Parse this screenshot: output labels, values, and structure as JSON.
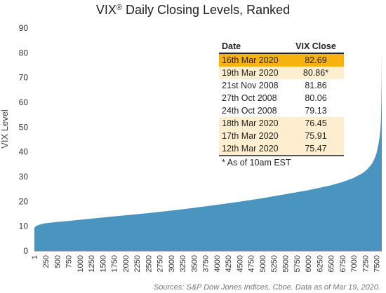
{
  "title_main": "VIX",
  "title_mark": "®",
  "title_rest": " Daily Closing Levels, Ranked",
  "source": "Sources: S&P Dow Jones Indices, Cboe.  Data as of Mar 19, 2020.",
  "colors": {
    "area": "#4a95c0",
    "highlight": "#f9b20f",
    "light": "#fdeed0"
  },
  "table": {
    "header": {
      "date": "Date",
      "value": "VIX Close"
    },
    "rows": [
      {
        "date": "16th Mar 2020",
        "value": "82.69",
        "style": "highlight"
      },
      {
        "date": "19th Mar 2020",
        "value": "80.86*",
        "style": "light"
      },
      {
        "date": "21st Nov 2008",
        "value": "81.86",
        "style": "plain"
      },
      {
        "date": "27th Oct 2008",
        "value": "80.06",
        "style": "plain"
      },
      {
        "date": "24th Oct 2008",
        "value": "79.13",
        "style": "plain"
      },
      {
        "date": "18th Mar 2020",
        "value": "76.45",
        "style": "light"
      },
      {
        "date": "17th Mar 2020",
        "value": "75.91",
        "style": "light"
      },
      {
        "date": "12th Mar 2020",
        "value": "75.47",
        "style": "light"
      }
    ],
    "footnote": "* As of 10am EST"
  },
  "chart_data": {
    "type": "area",
    "title": "VIX® Daily Closing Levels, Ranked",
    "xlabel": "",
    "ylabel": "VIX Level",
    "ylim": [
      0,
      90
    ],
    "xlim": [
      1,
      7615
    ],
    "y_ticks": [
      0,
      10,
      20,
      30,
      40,
      50,
      60,
      70,
      80,
      90
    ],
    "x_ticks": [
      1,
      250,
      500,
      750,
      1000,
      1250,
      1500,
      1750,
      2000,
      2250,
      2500,
      2750,
      3000,
      3250,
      3500,
      3750,
      4000,
      4250,
      4500,
      4750,
      5000,
      5250,
      5500,
      5750,
      6000,
      6250,
      6500,
      6750,
      7000,
      7250,
      7500
    ],
    "series": [
      {
        "x": [
          1,
          30,
          80,
          150,
          250,
          400,
          500,
          750,
          1000,
          1500,
          2000,
          2500,
          3000,
          3500,
          4000,
          4500,
          5000,
          5500,
          6000,
          6500,
          6750,
          7000,
          7200,
          7300,
          7400,
          7450,
          7500,
          7530,
          7560,
          7580,
          7595,
          7605,
          7612,
          7615
        ],
        "y": [
          9.3,
          9.9,
          10.4,
          10.8,
          11.2,
          11.5,
          11.7,
          12.1,
          12.6,
          13.5,
          14.4,
          15.3,
          16.3,
          17.4,
          18.6,
          19.9,
          21.3,
          22.9,
          24.5,
          26.5,
          27.8,
          29.5,
          31.5,
          33.0,
          35.2,
          37.0,
          39.5,
          42.0,
          45.0,
          48.0,
          52.0,
          60.0,
          70.0,
          82.7
        ]
      }
    ]
  }
}
